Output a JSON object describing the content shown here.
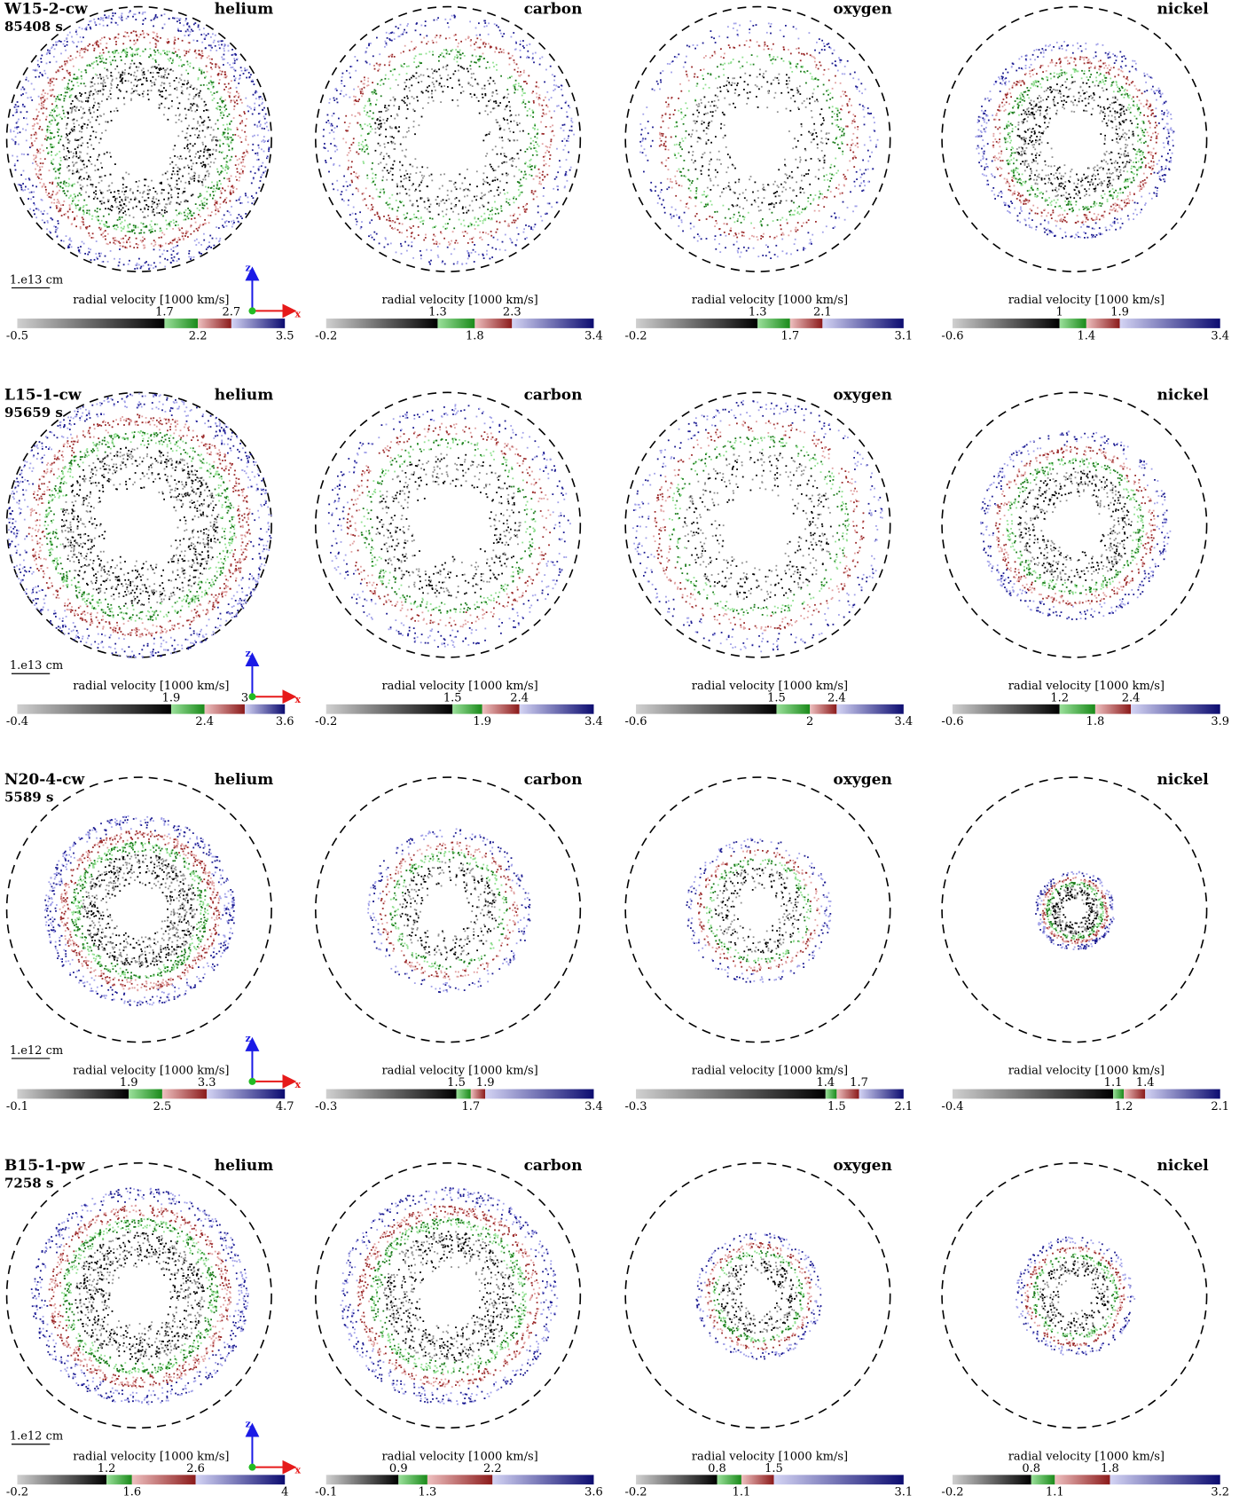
{
  "figure": {
    "colorbar_label": "radial velocity [1000 km/s]",
    "axis_z": "z",
    "axis_x": "x",
    "rows": [
      {
        "model": "W15-2-cw",
        "time": "85408 s",
        "scale": "1.e13 cm",
        "panels": [
          {
            "element": "helium",
            "min": -0.5,
            "max": 3.5,
            "ticks": [
              1.7,
              2.2,
              2.7
            ]
          },
          {
            "element": "carbon",
            "min": -0.2,
            "max": 3.4,
            "ticks": [
              1.3,
              1.8,
              2.3
            ]
          },
          {
            "element": "oxygen",
            "min": -0.2,
            "max": 3.1,
            "ticks": [
              1.3,
              1.7,
              2.1
            ]
          },
          {
            "element": "nickel",
            "min": -0.6,
            "max": 3.4,
            "ticks": [
              1,
              1.4,
              1.9
            ]
          }
        ]
      },
      {
        "model": "L15-1-cw",
        "time": "95659 s",
        "scale": "1.e13 cm",
        "panels": [
          {
            "element": "helium",
            "min": -0.4,
            "max": 3.6,
            "ticks": [
              1.9,
              2.4,
              3
            ]
          },
          {
            "element": "carbon",
            "min": -0.2,
            "max": 3.4,
            "ticks": [
              1.5,
              1.9,
              2.4
            ]
          },
          {
            "element": "oxygen",
            "min": -0.6,
            "max": 3.4,
            "ticks": [
              1.5,
              2,
              2.4
            ]
          },
          {
            "element": "nickel",
            "min": -0.6,
            "max": 3.9,
            "ticks": [
              1.2,
              1.8,
              2.4
            ]
          }
        ]
      },
      {
        "model": "N20-4-cw",
        "time": "5589 s",
        "scale": "1.e12 cm",
        "panels": [
          {
            "element": "helium",
            "min": -0.1,
            "max": 4.7,
            "ticks": [
              1.9,
              2.5,
              3.3
            ]
          },
          {
            "element": "carbon",
            "min": -0.3,
            "max": 3.4,
            "ticks": [
              1.5,
              1.7,
              1.9
            ]
          },
          {
            "element": "oxygen",
            "min": -0.3,
            "max": 2.1,
            "ticks": [
              1.4,
              1.5,
              1.7
            ]
          },
          {
            "element": "nickel",
            "min": -0.4,
            "max": 2.1,
            "ticks": [
              1.1,
              1.2,
              1.4
            ]
          }
        ]
      },
      {
        "model": "B15-1-pw",
        "time": "7258 s",
        "scale": "1.e12 cm",
        "panels": [
          {
            "element": "helium",
            "min": -0.2,
            "max": 4,
            "ticks": [
              1.2,
              1.6,
              2.6
            ]
          },
          {
            "element": "carbon",
            "min": -0.1,
            "max": 3.6,
            "ticks": [
              0.9,
              1.3,
              2.2
            ]
          },
          {
            "element": "oxygen",
            "min": -0.2,
            "max": 3.1,
            "ticks": [
              0.8,
              1.1,
              1.5
            ]
          },
          {
            "element": "nickel",
            "min": -0.2,
            "max": 3.2,
            "ticks": [
              0.8,
              1.1,
              1.8
            ]
          }
        ]
      }
    ]
  }
}
